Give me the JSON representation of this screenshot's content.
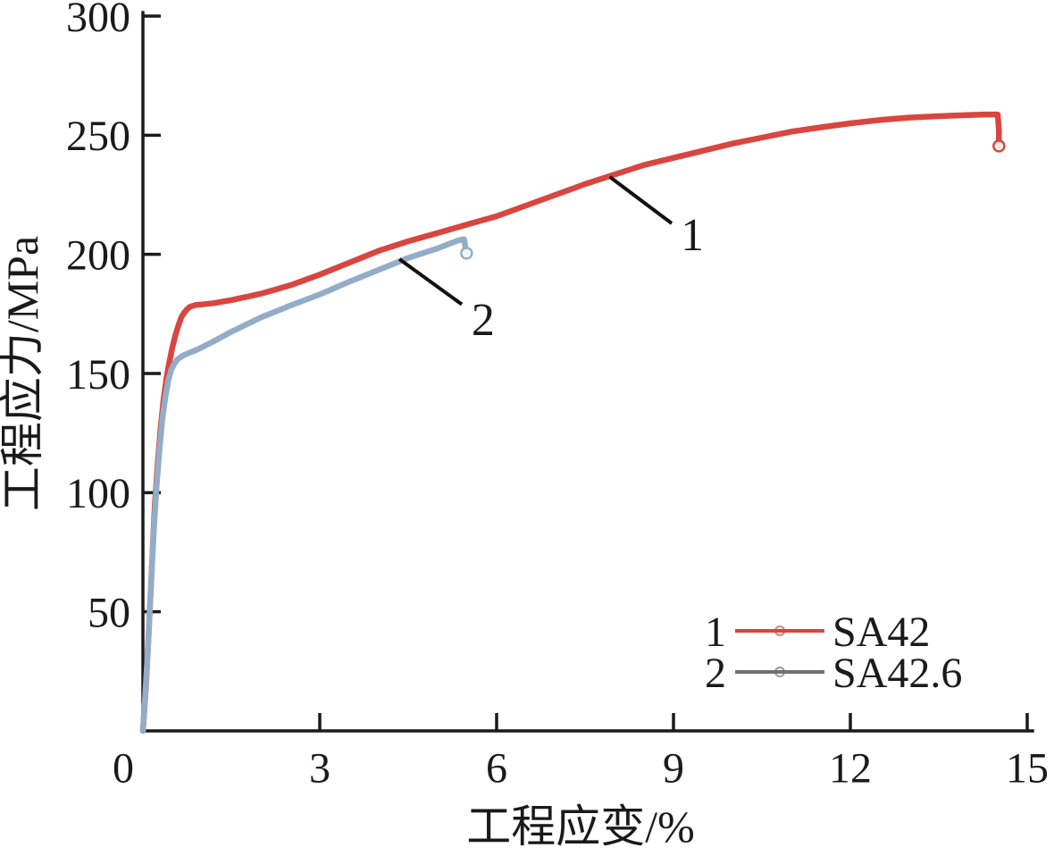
{
  "figure": {
    "background": "#ffffff",
    "axis_color": "#1a1a1a",
    "text_color": "#1a1a1a",
    "annotation_line_color": "#111111"
  },
  "chart_data": {
    "type": "line",
    "title": "",
    "xlabel": "工程应变/%",
    "ylabel": "工程应力/MPa",
    "xlim": [
      0,
      15
    ],
    "ylim": [
      0,
      300
    ],
    "xticks": [
      0,
      3,
      6,
      9,
      12,
      15
    ],
    "yticks": [
      50,
      100,
      150,
      200,
      250,
      300
    ],
    "grid": false,
    "legend_position": "lower-right",
    "series": [
      {
        "id": "1",
        "name": "SA42",
        "color": "#d9453f",
        "x": [
          0,
          0.05,
          0.1,
          0.15,
          0.2,
          0.25,
          0.3,
          0.35,
          0.4,
          0.45,
          0.5,
          0.55,
          0.6,
          0.65,
          0.7,
          0.75,
          0.8,
          0.9,
          1.0,
          1.2,
          1.5,
          2.0,
          2.5,
          3.0,
          3.5,
          4.0,
          4.5,
          5.0,
          5.5,
          6.0,
          6.5,
          7.0,
          7.5,
          8.0,
          8.5,
          9.0,
          9.5,
          10.0,
          10.5,
          11.0,
          11.5,
          12.0,
          12.5,
          13.0,
          13.5,
          14.0,
          14.3,
          14.5,
          14.52,
          14.52
        ],
        "y": [
          0,
          18,
          42,
          68,
          94,
          112,
          127,
          139,
          148,
          155,
          161,
          166,
          170,
          173.5,
          175.5,
          177,
          178,
          178.8,
          179,
          179.5,
          180.8,
          183.5,
          187,
          191.5,
          196.5,
          201.5,
          205.5,
          209,
          212.5,
          216,
          220.5,
          225,
          229.5,
          233.5,
          237.5,
          240.5,
          243.5,
          246.5,
          249,
          251.5,
          253.3,
          255,
          256.4,
          257.4,
          258,
          258.5,
          258.7,
          258.7,
          252,
          245.5
        ],
        "end_marker": true
      },
      {
        "id": "2",
        "name": "SA42.6",
        "color": "#93adc9",
        "legend_line_color": "#707070",
        "x": [
          0,
          0.04,
          0.09,
          0.13,
          0.18,
          0.23,
          0.28,
          0.33,
          0.38,
          0.43,
          0.48,
          0.53,
          0.58,
          0.65,
          0.7,
          0.8,
          0.9,
          1.0,
          1.2,
          1.5,
          2.0,
          2.5,
          3.0,
          3.5,
          4.0,
          4.5,
          5.0,
          5.2,
          5.35,
          5.42,
          5.45,
          5.47,
          5.49
        ],
        "y": [
          0,
          15,
          36,
          58,
          82,
          102,
          118,
          131,
          140,
          147,
          151.5,
          154,
          155.8,
          157,
          157.8,
          158.8,
          159.8,
          161,
          163.5,
          167.5,
          173.5,
          178.5,
          183.2,
          188.5,
          193.5,
          198.5,
          202.5,
          204.5,
          205.8,
          206.3,
          206.3,
          203,
          200.5
        ],
        "end_marker": true
      }
    ],
    "annotations": [
      {
        "label": "1",
        "from": [
          7.92,
          232.5
        ],
        "to": [
          8.97,
          213.0
        ],
        "label_at": [
          9.32,
          208.5
        ]
      },
      {
        "label": "2",
        "from": [
          4.35,
          198.0
        ],
        "to": [
          5.41,
          179.0
        ],
        "label_at": [
          5.77,
          173.0
        ]
      }
    ],
    "legend": {
      "items": [
        {
          "number": "1",
          "label": "SA42",
          "line_color": "#d9453f"
        },
        {
          "number": "2",
          "label": "SA42.6",
          "line_color": "#707070"
        }
      ]
    }
  }
}
